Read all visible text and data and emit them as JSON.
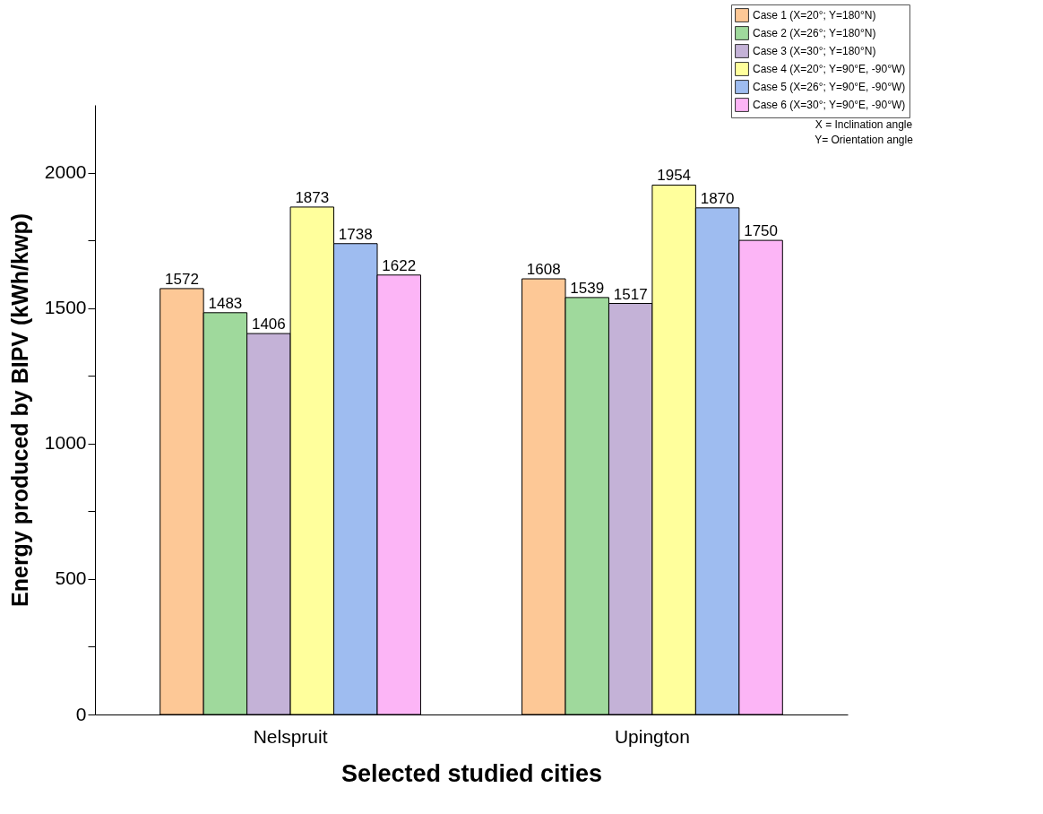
{
  "chart_data": {
    "type": "bar",
    "xlabel": "Selected studied cities",
    "ylabel": "Energy produced by BIPV (kWh/kwp)",
    "categories": [
      "Nelspruit",
      "Upington"
    ],
    "series": [
      {
        "name": "Case 1 (X=20°; Y=180°N)",
        "color": "#fdc896",
        "values": [
          1572,
          1608
        ]
      },
      {
        "name": "Case 2 (X=26°; Y=180°N)",
        "color": "#9fd99c",
        "values": [
          1483,
          1539
        ]
      },
      {
        "name": "Case 3 (X=30°; Y=180°N)",
        "color": "#c4b2d7",
        "values": [
          1406,
          1517
        ]
      },
      {
        "name": "Case 4 (X=20°; Y=90°E, -90°W)",
        "color": "#ffff9c",
        "values": [
          1873,
          1954
        ]
      },
      {
        "name": "Case 5 (X=26°; Y=90°E, -90°W)",
        "color": "#9ebcf0",
        "values": [
          1738,
          1870
        ]
      },
      {
        "name": "Case 6 (X=30°; Y=90°E, -90°W)",
        "color": "#fcb5f6",
        "values": [
          1622,
          1750
        ]
      }
    ],
    "ylim": [
      0,
      2250
    ],
    "yticks": [
      0,
      {
        "value": 250,
        "label": null
      },
      500,
      {
        "value": 750,
        "label": null
      },
      1000,
      {
        "value": 1250,
        "label": null
      },
      1500,
      {
        "value": 1750,
        "label": null
      },
      2000
    ],
    "grid": false,
    "legend": "top right",
    "data_labels": true,
    "annotations": [
      "X = Inclination angle",
      "Y= Orientation angle"
    ]
  }
}
